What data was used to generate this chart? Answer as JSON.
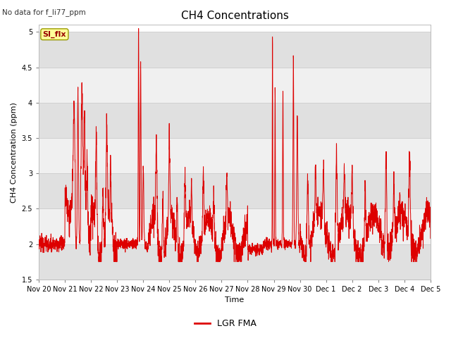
{
  "title": "CH4 Concentrations",
  "ylabel": "CH4 Concentration (ppm)",
  "xlabel": "Time",
  "top_left_text": "No data for f_li77_ppm",
  "legend_label": "LGR FMA",
  "legend_label2": "SI_flx",
  "ylim": [
    1.5,
    5.1
  ],
  "yticks": [
    1.5,
    2.0,
    2.5,
    3.0,
    3.5,
    4.0,
    4.5,
    5.0
  ],
  "xtick_labels": [
    "Nov 20",
    "Nov 21",
    "Nov 22",
    "Nov 23",
    "Nov 24",
    "Nov 25",
    "Nov 26",
    "Nov 27",
    "Nov 28",
    "Nov 29",
    "Nov 30",
    "Dec 1",
    "Dec 2",
    "Dec 3",
    "Dec 4",
    "Dec 5"
  ],
  "line_color": "#dd0000",
  "legend_line_color": "#dd0000",
  "bg_color": "#ffffff",
  "plot_bg_color": "#ffffff",
  "band_color_dark": "#e0e0e0",
  "band_color_light": "#f0f0f0",
  "grid_color": "#d0d0d0",
  "title_fontsize": 11,
  "label_fontsize": 8,
  "tick_fontsize": 7,
  "legend_box_color": "#ffff99",
  "legend_box_edge": "#999900",
  "legend2_text_color": "#990000",
  "n_days": 15,
  "n_points": 3000
}
